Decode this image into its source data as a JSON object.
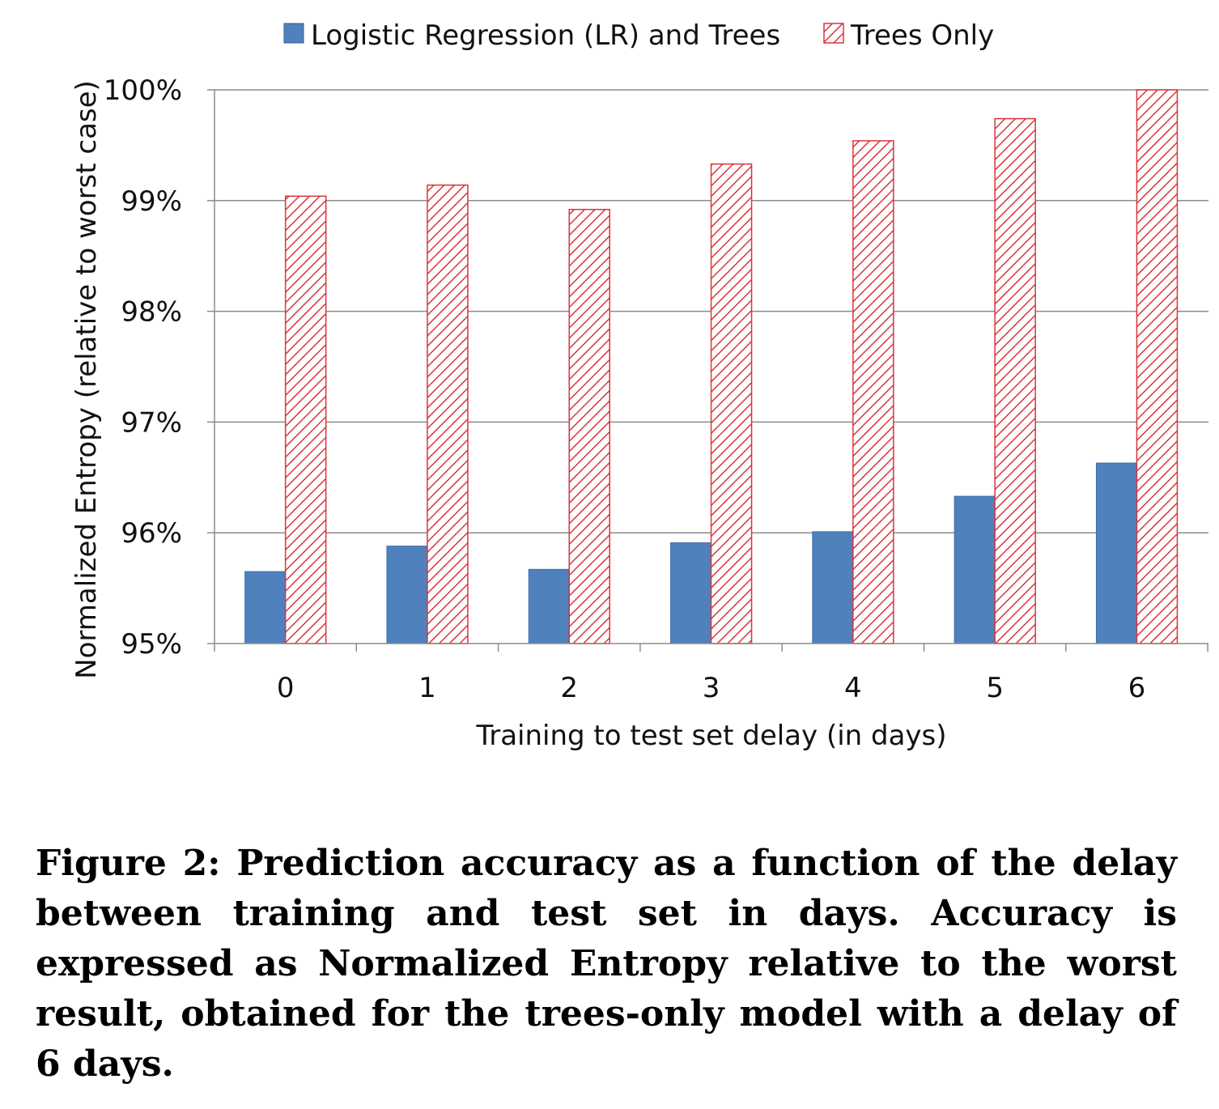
{
  "chart_data": {
    "type": "bar",
    "title": "",
    "xlabel": "Training to test set delay (in days)",
    "ylabel": "Normalized Entropy (relative to worst case)",
    "categories": [
      "0",
      "1",
      "2",
      "3",
      "4",
      "5",
      "6"
    ],
    "series": [
      {
        "name": "Logistic Regression (LR) and Trees",
        "values": [
          95.65,
          95.88,
          95.67,
          95.91,
          96.01,
          96.33,
          96.63
        ],
        "color": "#4f81bd",
        "pattern": "solid"
      },
      {
        "name": "Trees Only",
        "values": [
          99.04,
          99.14,
          98.92,
          99.33,
          99.54,
          99.74,
          100.0
        ],
        "color": "#d9353a",
        "pattern": "diagonal-hatch"
      }
    ],
    "ylim": [
      95,
      100
    ],
    "yticks": [
      95,
      96,
      97,
      98,
      99,
      100
    ],
    "ytick_labels": [
      "95%",
      "96%",
      "97%",
      "98%",
      "99%",
      "100%"
    ],
    "grid": true,
    "legend_position": "top-center"
  },
  "caption": {
    "text": "Figure 2: Prediction accuracy as a function of the delay between training and test set in days. Accuracy is expressed as Normalized Entropy relative to the worst result, obtained for the trees-only model with a delay of 6 days."
  }
}
